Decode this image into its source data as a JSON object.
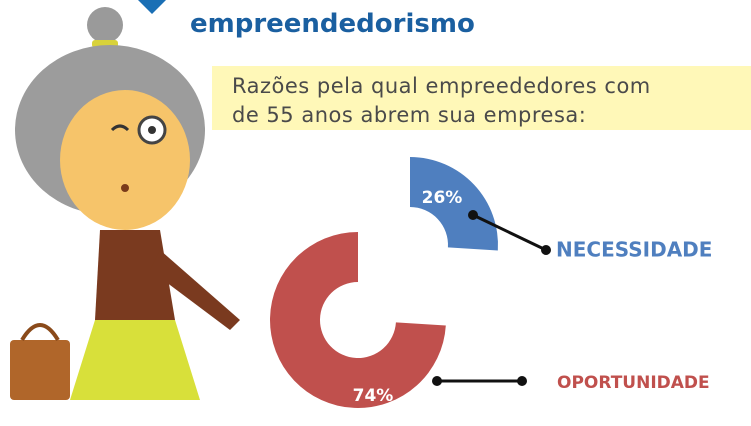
{
  "chart_data": {
    "type": "donut",
    "title": "empreendedorismo",
    "subtitle": "Razões pela qual empreededores com\nde 55 anos abrem sua empresa:",
    "categories": [
      "NECESSIDADE",
      "OPORTUNIDADE"
    ],
    "values": [
      26,
      74
    ],
    "value_labels": [
      "26%",
      "74%"
    ],
    "colors": [
      "#4f7fbf",
      "#c0504d"
    ]
  }
}
